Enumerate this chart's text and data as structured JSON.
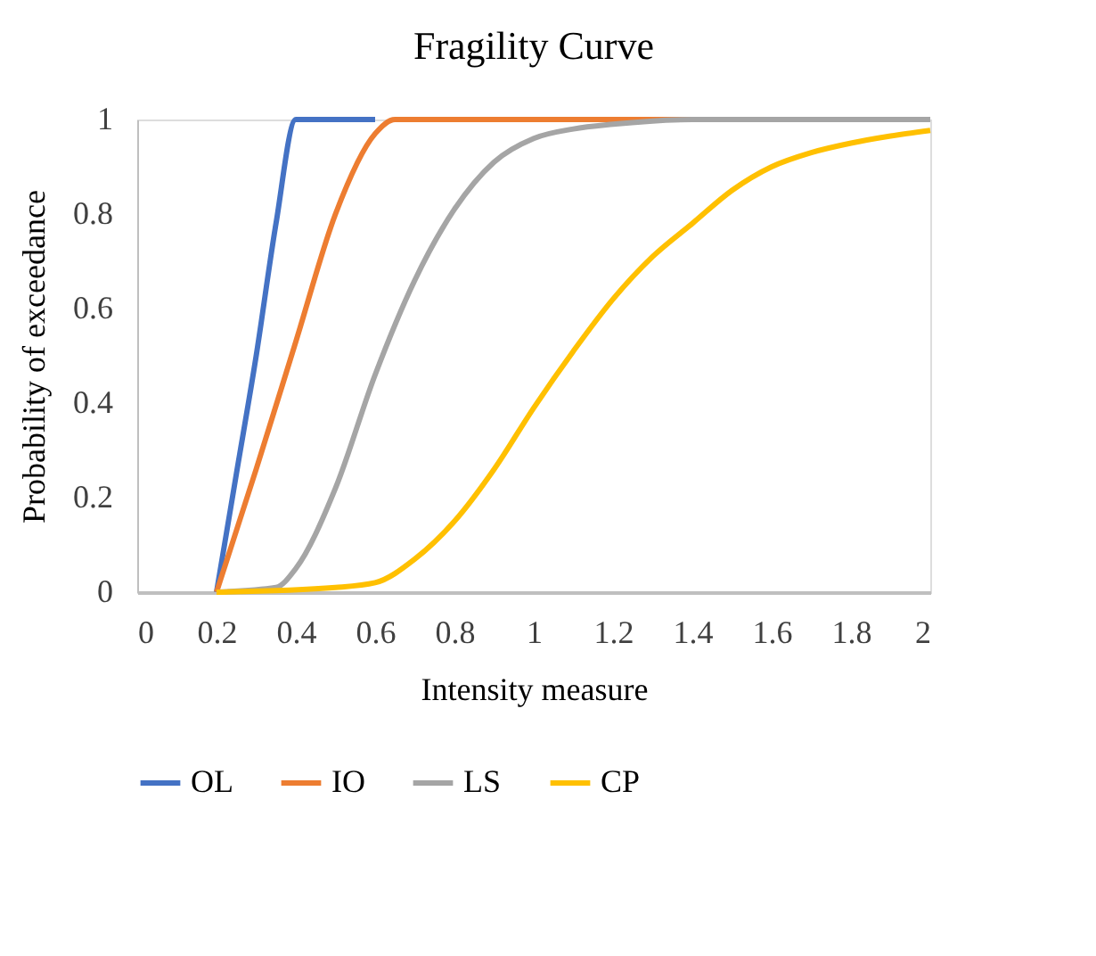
{
  "chart_data": {
    "type": "line",
    "title": "Fragility Curve",
    "xlabel": "Intensity measure",
    "ylabel": "Probability of exceedance",
    "xlim": [
      0,
      2
    ],
    "xticks": [
      0,
      0.2,
      0.4,
      0.6,
      0.8,
      1,
      1.2,
      1.4,
      1.6,
      1.8,
      2
    ],
    "ylim": [
      0,
      1
    ],
    "yticks": [
      0,
      0.2,
      0.4,
      0.6,
      0.8,
      1
    ],
    "grid": false,
    "legend": "bottom",
    "marker": "none",
    "line_style": "solid",
    "series": [
      {
        "name": "OL",
        "color": "#4472c4",
        "x": [
          0.2,
          0.25,
          0.3,
          0.35,
          0.4,
          0.6
        ],
        "values": [
          0,
          0.25,
          0.5,
          0.78,
          1,
          1
        ]
      },
      {
        "name": "IO",
        "color": "#ed7d31",
        "x": [
          0.2,
          0.3,
          0.4,
          0.5,
          0.6,
          0.65,
          0.7,
          2
        ],
        "values": [
          0,
          0.26,
          0.53,
          0.8,
          0.97,
          1,
          1,
          1
        ]
      },
      {
        "name": "LS",
        "color": "#a5a5a5",
        "x": [
          0.2,
          0.35,
          0.4,
          0.5,
          0.6,
          0.7,
          0.8,
          0.9,
          1,
          1.1,
          1.2,
          1.4,
          2
        ],
        "values": [
          0,
          0.01,
          0.05,
          0.22,
          0.46,
          0.66,
          0.81,
          0.91,
          0.96,
          0.98,
          0.99,
          1,
          1
        ]
      },
      {
        "name": "CP",
        "color": "#ffc000",
        "x": [
          0.2,
          0.5,
          0.6,
          0.7,
          0.8,
          0.9,
          1,
          1.1,
          1.2,
          1.3,
          1.4,
          1.5,
          1.6,
          1.7,
          1.8,
          1.9,
          2
        ],
        "values": [
          0,
          0.01,
          0.02,
          0.07,
          0.15,
          0.26,
          0.39,
          0.51,
          0.62,
          0.71,
          0.78,
          0.85,
          0.9,
          0.93,
          0.95,
          0.965,
          0.977
        ]
      }
    ]
  }
}
